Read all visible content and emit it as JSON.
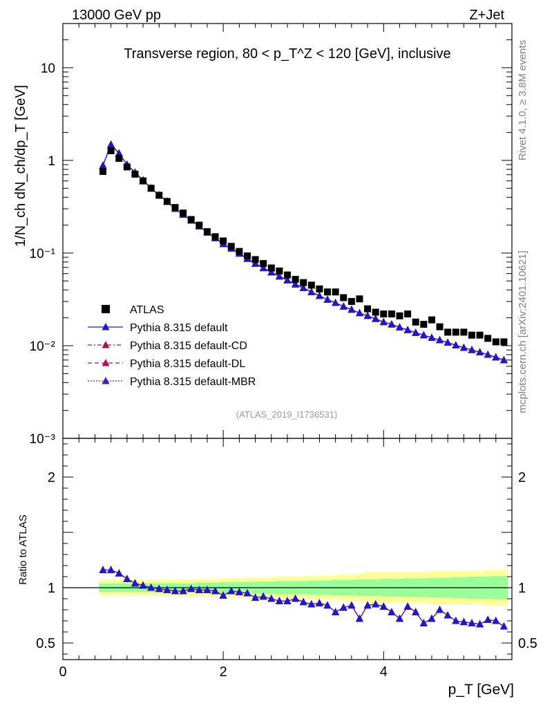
{
  "header": {
    "energy_label": "13000 GeV pp",
    "process_label": "Z+Jet",
    "plot_title": "Transverse region, 80 < p_T^Z < 120 [GeV], inclusive",
    "ylabel_top": "1/N_ch dN_ch/dp_T [GeV]",
    "ylabel_bottom": "Ratio to ATLAS",
    "xlabel": "p_T [GeV]",
    "analysis_id": "(ATLAS_2019_I1736531)",
    "side_rivet": "Rivet 4.1.0, ≥ 3.8M events",
    "side_mcplots": "mcplots.cern.ch [arXiv:2401.10621]"
  },
  "legend": [
    {
      "label": "ATLAS",
      "marker": "square",
      "color": "#000000",
      "line": "none"
    },
    {
      "label": "Pythia 8.315 default",
      "marker": "triangle",
      "color": "#1a1acc",
      "line": "solid"
    },
    {
      "label": "Pythia 8.315 default-CD",
      "marker": "triangle",
      "color": "#b0114a",
      "line": "dashdot"
    },
    {
      "label": "Pythia 8.315 default-DL",
      "marker": "triangle",
      "color": "#b0115e",
      "line": "dash"
    },
    {
      "label": "Pythia 8.315 default-MBR",
      "marker": "triangle",
      "color": "#4a1ab0",
      "line": "dot"
    }
  ],
  "chart_data": {
    "type": "scatter",
    "x": [
      0.5,
      0.6,
      0.7,
      0.8,
      0.9,
      1.0,
      1.1,
      1.2,
      1.3,
      1.4,
      1.5,
      1.6,
      1.7,
      1.8,
      1.9,
      2.0,
      2.1,
      2.2,
      2.3,
      2.4,
      2.5,
      2.6,
      2.7,
      2.8,
      2.9,
      3.0,
      3.1,
      3.2,
      3.3,
      3.4,
      3.5,
      3.6,
      3.7,
      3.8,
      3.9,
      4.0,
      4.1,
      4.2,
      4.3,
      4.4,
      4.5,
      4.6,
      4.7,
      4.8,
      4.9,
      5.0,
      5.1,
      5.2,
      5.3,
      5.4,
      5.5
    ],
    "xlim": [
      0,
      5.6
    ],
    "xticks": [
      0,
      2,
      4
    ],
    "top_panel": {
      "yscale": "log",
      "ylim": [
        0.001,
        30
      ],
      "yticks": [
        {
          "value": 0.001,
          "label": "10⁻³"
        },
        {
          "value": 0.01,
          "label": "10⁻²"
        },
        {
          "value": 0.1,
          "label": "10⁻¹"
        },
        {
          "value": 1,
          "label": "1"
        },
        {
          "value": 10,
          "label": "10"
        }
      ],
      "atlas": [
        0.76,
        1.27,
        1.05,
        0.85,
        0.71,
        0.6,
        0.5,
        0.42,
        0.36,
        0.31,
        0.27,
        0.23,
        0.2,
        0.17,
        0.15,
        0.135,
        0.118,
        0.104,
        0.093,
        0.085,
        0.077,
        0.069,
        0.064,
        0.058,
        0.052,
        0.048,
        0.045,
        0.041,
        0.038,
        0.038,
        0.033,
        0.03,
        0.032,
        0.025,
        0.023,
        0.022,
        0.022,
        0.021,
        0.022,
        0.018,
        0.017,
        0.019,
        0.016,
        0.014,
        0.014,
        0.014,
        0.013,
        0.013,
        0.012,
        0.011,
        0.011
      ],
      "pythia": [
        0.88,
        1.48,
        1.19,
        0.9,
        0.74,
        0.61,
        0.5,
        0.42,
        0.36,
        0.3,
        0.26,
        0.225,
        0.195,
        0.167,
        0.145,
        0.125,
        0.112,
        0.099,
        0.087,
        0.077,
        0.069,
        0.062,
        0.056,
        0.051,
        0.046,
        0.042,
        0.038,
        0.0345,
        0.0315,
        0.029,
        0.0265,
        0.0245,
        0.0225,
        0.021,
        0.0195,
        0.018,
        0.017,
        0.0158,
        0.0148,
        0.0138,
        0.013,
        0.0122,
        0.0115,
        0.0108,
        0.0101,
        0.0095,
        0.009,
        0.0085,
        0.008,
        0.0075,
        0.007
      ]
    },
    "bottom_panel": {
      "ylim": [
        0.35,
        2.35
      ],
      "yticks": [
        {
          "value": 0.5,
          "label": "0.5"
        },
        {
          "value": 1,
          "label": "1"
        },
        {
          "value": 2,
          "label": "2"
        }
      ],
      "series": [
        {
          "name": "Pythia 8.315 default",
          "values": [
            1.16,
            1.16,
            1.13,
            1.08,
            1.04,
            1.02,
            1.0,
            0.99,
            0.98,
            0.97,
            0.97,
            0.99,
            0.98,
            0.98,
            0.97,
            0.93,
            0.97,
            0.96,
            0.95,
            0.91,
            0.92,
            0.9,
            0.88,
            0.88,
            0.9,
            0.87,
            0.85,
            0.86,
            0.84,
            0.78,
            0.82,
            0.84,
            0.72,
            0.84,
            0.85,
            0.83,
            0.78,
            0.72,
            0.83,
            0.78,
            0.68,
            0.72,
            0.8,
            0.75,
            0.7,
            0.69,
            0.68,
            0.67,
            0.71,
            0.7,
            0.65
          ]
        },
        {
          "name": "Pythia 8.315 default-CD",
          "values": [
            1.16,
            1.16,
            1.13,
            1.08,
            1.04,
            1.02,
            1.0,
            0.99,
            0.98,
            0.97,
            0.97,
            0.99,
            0.98,
            0.98,
            0.97,
            0.93,
            0.97,
            0.96,
            0.95,
            0.91,
            0.92,
            0.9,
            0.88,
            0.88,
            0.9,
            0.87,
            0.85,
            0.86,
            0.84,
            0.78,
            0.82,
            0.84,
            0.72,
            0.84,
            0.85,
            0.83,
            0.78,
            0.72,
            0.83,
            0.78,
            0.68,
            0.72,
            0.8,
            0.75,
            0.7,
            0.69,
            0.68,
            0.67,
            0.71,
            0.7,
            0.65
          ]
        },
        {
          "name": "Pythia 8.315 default-DL",
          "values": [
            1.16,
            1.16,
            1.13,
            1.08,
            1.04,
            1.02,
            1.0,
            0.99,
            0.98,
            0.97,
            0.97,
            0.99,
            0.98,
            0.98,
            0.97,
            0.93,
            0.97,
            0.96,
            0.95,
            0.91,
            0.92,
            0.9,
            0.88,
            0.88,
            0.9,
            0.87,
            0.85,
            0.86,
            0.84,
            0.78,
            0.82,
            0.84,
            0.72,
            0.84,
            0.85,
            0.83,
            0.78,
            0.72,
            0.83,
            0.78,
            0.68,
            0.72,
            0.8,
            0.75,
            0.7,
            0.69,
            0.68,
            0.67,
            0.71,
            0.7,
            0.65
          ]
        },
        {
          "name": "Pythia 8.315 default-MBR",
          "values": [
            1.16,
            1.16,
            1.13,
            1.08,
            1.04,
            1.02,
            1.0,
            0.99,
            0.98,
            0.97,
            0.97,
            0.99,
            0.98,
            0.98,
            0.97,
            0.93,
            0.97,
            0.96,
            0.95,
            0.91,
            0.92,
            0.9,
            0.88,
            0.88,
            0.9,
            0.87,
            0.85,
            0.86,
            0.84,
            0.78,
            0.82,
            0.84,
            0.72,
            0.84,
            0.85,
            0.83,
            0.78,
            0.72,
            0.83,
            0.78,
            0.68,
            0.72,
            0.8,
            0.75,
            0.7,
            0.69,
            0.68,
            0.67,
            0.71,
            0.7,
            0.65
          ]
        }
      ],
      "green_band_halfwidth": [
        0.04,
        0.04,
        0.04,
        0.04,
        0.04,
        0.04,
        0.04,
        0.04,
        0.04,
        0.04,
        0.04,
        0.04,
        0.045,
        0.045,
        0.045,
        0.05,
        0.05,
        0.05,
        0.05,
        0.055,
        0.055,
        0.055,
        0.06,
        0.06,
        0.06,
        0.06,
        0.065,
        0.065,
        0.065,
        0.07,
        0.07,
        0.07,
        0.075,
        0.075,
        0.075,
        0.08,
        0.08,
        0.08,
        0.085,
        0.085,
        0.085,
        0.09,
        0.09,
        0.09,
        0.095,
        0.095,
        0.1,
        0.1,
        0.1,
        0.105,
        0.105
      ],
      "yellow_band_halfwidth": [
        0.07,
        0.07,
        0.07,
        0.07,
        0.07,
        0.07,
        0.07,
        0.07,
        0.075,
        0.075,
        0.075,
        0.075,
        0.08,
        0.08,
        0.08,
        0.085,
        0.085,
        0.085,
        0.09,
        0.09,
        0.09,
        0.095,
        0.1,
        0.1,
        0.1,
        0.105,
        0.105,
        0.11,
        0.11,
        0.11,
        0.12,
        0.12,
        0.125,
        0.14,
        0.14,
        0.14,
        0.14,
        0.14,
        0.14,
        0.14,
        0.14,
        0.15,
        0.15,
        0.15,
        0.15,
        0.15,
        0.15,
        0.15,
        0.16,
        0.16,
        0.16
      ]
    }
  }
}
